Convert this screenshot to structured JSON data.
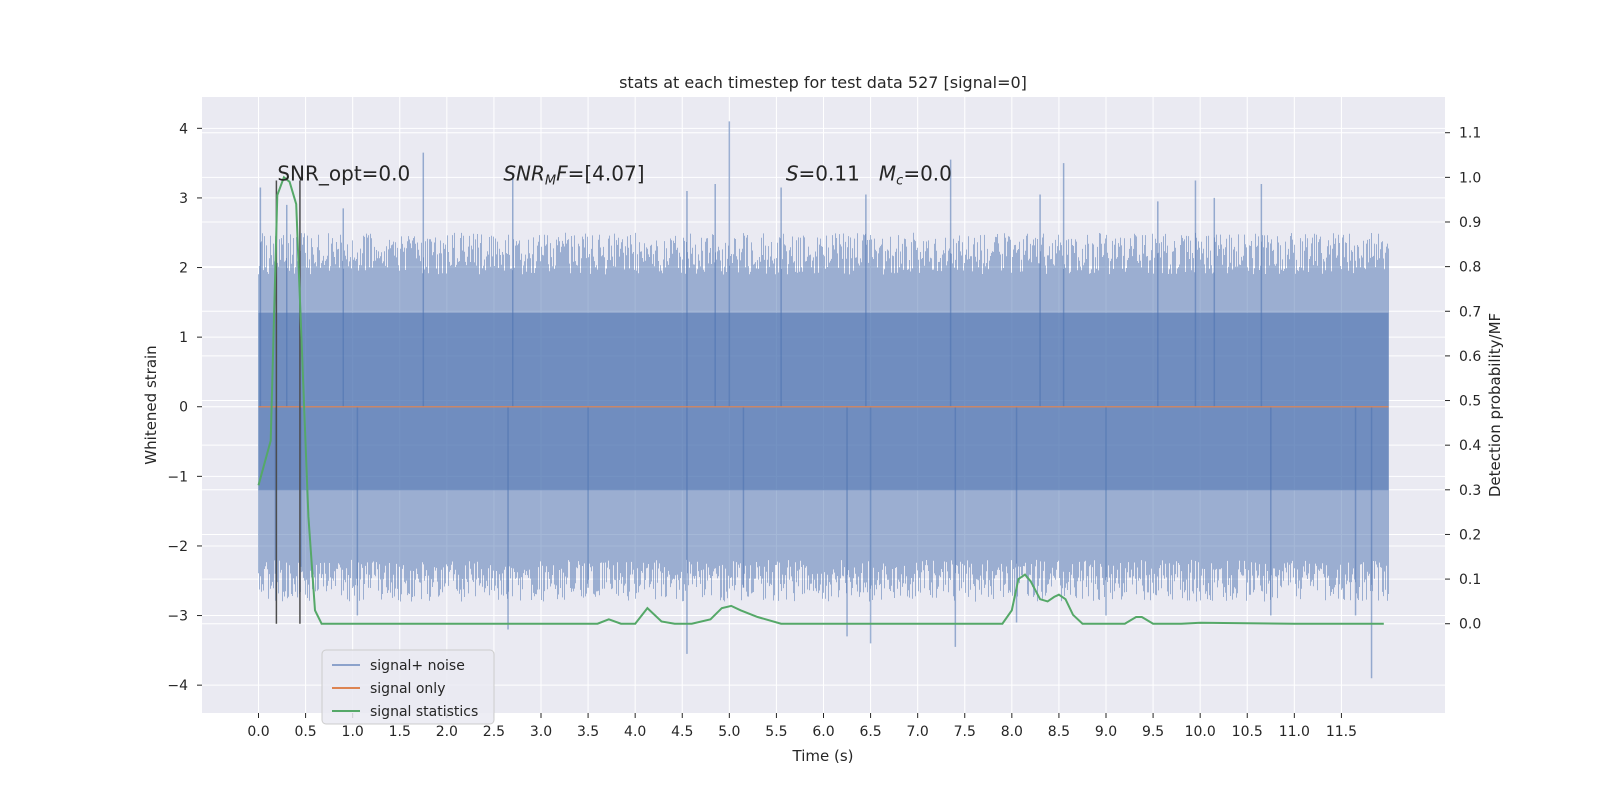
{
  "chart_data": {
    "type": "line",
    "title": "stats at each timestep for test data 527 [signal=0]",
    "xlabel": "Time (s)",
    "ylabel": "Whitened strain",
    "ylabel_right": "Detection probability/MF",
    "xlim": [
      -0.6,
      12.6
    ],
    "ylim": [
      -4.4,
      4.45
    ],
    "ylim_right": [
      -0.2,
      1.18
    ],
    "x_ticks": [
      0.0,
      0.5,
      1.0,
      1.5,
      2.0,
      2.5,
      3.0,
      3.5,
      4.0,
      4.5,
      5.0,
      5.5,
      6.0,
      6.5,
      7.0,
      7.5,
      8.0,
      8.5,
      9.0,
      9.5,
      10.0,
      10.5,
      11.0,
      11.5
    ],
    "x_tick_labels": [
      "0.0",
      "0.5",
      "1.0",
      "1.5",
      "2.0",
      "2.5",
      "3.0",
      "3.5",
      "4.0",
      "4.5",
      "5.0",
      "5.5",
      "6.0",
      "6.5",
      "7.0",
      "7.5",
      "8.0",
      "8.5",
      "9.0",
      "9.5",
      "10.0",
      "10.5",
      "11.0",
      "11.5"
    ],
    "y_ticks": [
      4,
      3,
      2,
      1,
      0,
      -1,
      -2,
      -3,
      -4
    ],
    "y_tick_labels": [
      "4",
      "3",
      "2",
      "1",
      "0",
      "−1",
      "−2",
      "−3",
      "−4"
    ],
    "y_ticks_right": [
      1.1,
      1.0,
      0.9,
      0.8,
      0.7,
      0.6,
      0.5,
      0.4,
      0.3,
      0.2,
      0.1,
      0.0
    ],
    "y_tick_labels_right": [
      "1.1",
      "1.0",
      "0.9",
      "0.8",
      "0.7",
      "0.6",
      "0.5",
      "0.4",
      "0.3",
      "0.2",
      "0.1",
      "0.0"
    ],
    "grid": true,
    "legend_position": "lower-left",
    "annotations": [
      {
        "text": "SNR_opt=0.0",
        "x": 0.2,
        "y": 3.25
      },
      {
        "text": "SNR_MF=[4.07]",
        "x": 2.6,
        "y": 3.25
      },
      {
        "text": "S=0.11   M_c=0.0",
        "x": 5.6,
        "y": 3.25
      }
    ],
    "markers_x": [
      0.19,
      0.44
    ],
    "series": [
      {
        "name": "signal+ noise",
        "color": "#4c72b0",
        "axis": "left",
        "kind": "noise",
        "x_range": [
          0.0,
          12.0
        ],
        "band": [
          -1.2,
          1.35
        ],
        "envelope_low": [
          -2.8,
          -2.2
        ],
        "envelope_high": [
          1.9,
          2.5
        ],
        "spikes": [
          {
            "x": 0.02,
            "y": 3.15
          },
          {
            "x": 0.18,
            "y": -2.4
          },
          {
            "x": 0.3,
            "y": 2.9
          },
          {
            "x": 0.45,
            "y": -2.3
          },
          {
            "x": 0.9,
            "y": 2.85
          },
          {
            "x": 1.05,
            "y": -3.0
          },
          {
            "x": 1.75,
            "y": 3.65
          },
          {
            "x": 2.65,
            "y": -3.2
          },
          {
            "x": 2.7,
            "y": 3.3
          },
          {
            "x": 3.5,
            "y": -2.6
          },
          {
            "x": 4.55,
            "y": 3.1
          },
          {
            "x": 4.55,
            "y": -3.55
          },
          {
            "x": 4.85,
            "y": 3.2
          },
          {
            "x": 5.0,
            "y": 4.1
          },
          {
            "x": 5.15,
            "y": -2.6
          },
          {
            "x": 5.55,
            "y": 3.15
          },
          {
            "x": 6.25,
            "y": -3.3
          },
          {
            "x": 6.5,
            "y": -3.4
          },
          {
            "x": 6.45,
            "y": 3.05
          },
          {
            "x": 7.35,
            "y": 3.55
          },
          {
            "x": 7.4,
            "y": -3.45
          },
          {
            "x": 8.05,
            "y": -3.1
          },
          {
            "x": 8.3,
            "y": 3.05
          },
          {
            "x": 8.55,
            "y": 3.5
          },
          {
            "x": 9.0,
            "y": -3.0
          },
          {
            "x": 9.55,
            "y": 2.95
          },
          {
            "x": 9.95,
            "y": 3.25
          },
          {
            "x": 10.15,
            "y": 3.0
          },
          {
            "x": 10.65,
            "y": 3.2
          },
          {
            "x": 10.75,
            "y": -3.0
          },
          {
            "x": 11.65,
            "y": -3.0
          },
          {
            "x": 11.82,
            "y": -3.9
          }
        ]
      },
      {
        "name": "signal only",
        "color": "#dd8452",
        "axis": "left",
        "x": [
          0.0,
          12.0
        ],
        "y": [
          0.0,
          0.0
        ]
      },
      {
        "name": "signal statistics",
        "color": "#55a868",
        "axis": "right",
        "x": [
          0.0,
          0.13,
          0.2,
          0.27,
          0.33,
          0.4,
          0.46,
          0.53,
          0.6,
          0.67,
          0.73,
          0.8,
          1.0,
          1.5,
          2.0,
          2.2,
          3.0,
          3.6,
          3.72,
          3.85,
          4.0,
          4.13,
          4.28,
          4.42,
          4.6,
          4.8,
          4.92,
          5.02,
          5.12,
          5.3,
          5.55,
          6.0,
          7.0,
          7.6,
          7.9,
          8.0,
          8.07,
          8.14,
          8.2,
          8.3,
          8.38,
          8.45,
          8.5,
          8.57,
          8.65,
          8.75,
          9.0,
          9.2,
          9.32,
          9.38,
          9.5,
          9.8,
          10.0,
          11.0,
          11.5,
          11.95
        ],
        "y": [
          0.31,
          0.41,
          0.96,
          1.0,
          0.99,
          0.94,
          0.62,
          0.24,
          0.03,
          0.0,
          0.0,
          0.0,
          0.0,
          0.0,
          0.0,
          0.0,
          0.0,
          0.0,
          0.01,
          0.0,
          0.0,
          0.035,
          0.005,
          0.0,
          0.0,
          0.01,
          0.035,
          0.04,
          0.03,
          0.015,
          0.0,
          0.0,
          0.0,
          0.0,
          0.0,
          0.03,
          0.1,
          0.11,
          0.095,
          0.055,
          0.05,
          0.06,
          0.065,
          0.055,
          0.02,
          0.0,
          0.0,
          0.0,
          0.015,
          0.015,
          0.0,
          0.0,
          0.002,
          0.0,
          0.0,
          0.0
        ]
      }
    ]
  }
}
